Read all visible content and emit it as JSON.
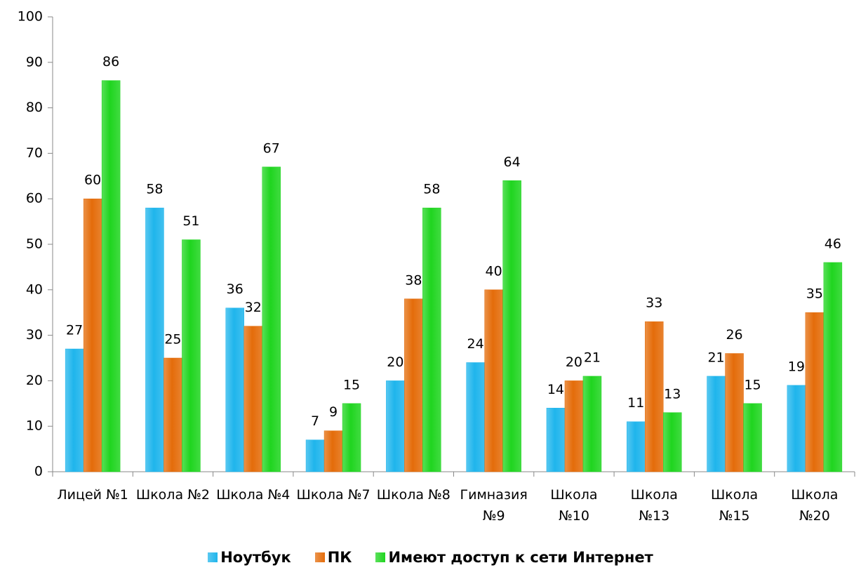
{
  "chart_data": {
    "type": "bar",
    "categories": [
      "Лицей №1",
      "Школа №2",
      "Школа №4",
      "Школа №7",
      "Школа №8",
      "Гимназия №9",
      "Школа №10",
      "Школа №13",
      "Школа №15",
      "Школа №20"
    ],
    "series": [
      {
        "name": "Ноутбук",
        "color": "#1fb5ec",
        "values": [
          27,
          58,
          36,
          7,
          20,
          24,
          14,
          11,
          21,
          19
        ]
      },
      {
        "name": "ПК",
        "color": "#e46c0a",
        "values": [
          60,
          25,
          32,
          9,
          38,
          40,
          20,
          33,
          26,
          35
        ]
      },
      {
        "name": "Имеют доступ к сети Интернет",
        "color": "#1fd51f",
        "values": [
          86,
          51,
          67,
          15,
          58,
          64,
          21,
          13,
          15,
          46
        ]
      }
    ],
    "ylim": [
      0,
      100
    ],
    "yticks": [
      0,
      10,
      20,
      30,
      40,
      50,
      60,
      70,
      80,
      90,
      100
    ],
    "grid": false,
    "legend": "bottom"
  }
}
